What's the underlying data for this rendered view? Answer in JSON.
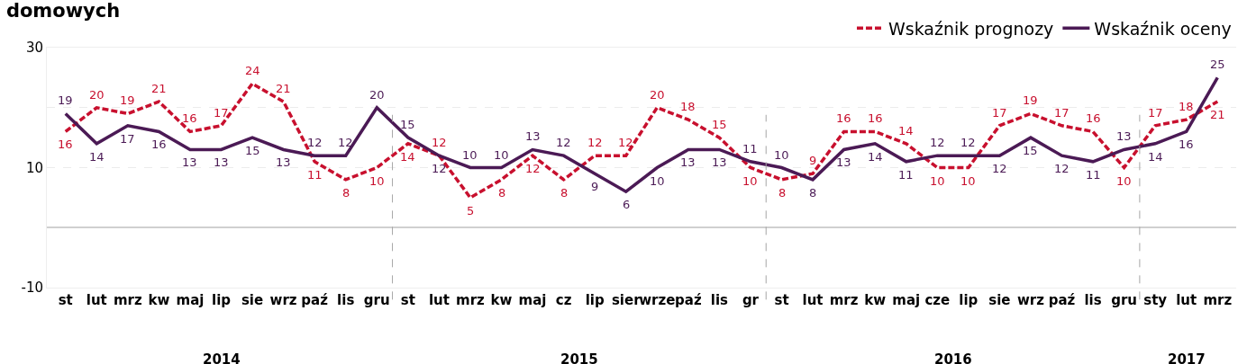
{
  "chart_data": {
    "type": "line",
    "title": "domowych",
    "categories": [
      "st",
      "lut",
      "mrz",
      "kw",
      "maj",
      "lip",
      "sie",
      "wrz",
      "paź",
      "lis",
      "gru",
      "st",
      "lut",
      "mrz",
      "kw",
      "maj",
      "cz",
      "lip",
      "sier",
      "wrze",
      "paź",
      "lis",
      "gr",
      "st",
      "lut",
      "mrz",
      "kw",
      "maj",
      "cze",
      "lip",
      "sie",
      "wrz",
      "paź",
      "lis",
      "gru",
      "sty",
      "lut",
      "mrz"
    ],
    "series": [
      {
        "name": "Wskaźnik prognozy",
        "color": "#c8102e",
        "line_style": "dashed",
        "values": [
          16,
          20,
          19,
          21,
          16,
          17,
          24,
          21,
          11,
          8,
          10,
          14,
          12,
          5,
          8,
          12,
          8,
          12,
          12,
          20,
          18,
          15,
          10,
          8,
          9,
          16,
          16,
          14,
          10,
          10,
          17,
          19,
          17,
          16,
          10,
          17,
          18,
          21
        ]
      },
      {
        "name": "Wskaźnik oceny",
        "color": "#4b1a55",
        "line_style": "solid",
        "values": [
          19,
          14,
          17,
          16,
          13,
          13,
          15,
          13,
          12,
          12,
          20,
          15,
          12,
          10,
          10,
          13,
          12,
          9,
          6,
          10,
          13,
          13,
          11,
          10,
          8,
          13,
          14,
          11,
          12,
          12,
          12,
          15,
          12,
          11,
          13,
          14,
          16,
          25
        ]
      }
    ],
    "ylim": [
      -10,
      30
    ],
    "yticks": [
      30,
      {
        "value": 20,
        "label": null
      },
      10,
      {
        "value": 0,
        "label": null
      },
      -10
    ],
    "grid": "y",
    "legend": "top right",
    "data_labels": true,
    "marker": "none",
    "annotations": [
      "2014",
      "2015",
      "2016",
      "2017"
    ]
  }
}
